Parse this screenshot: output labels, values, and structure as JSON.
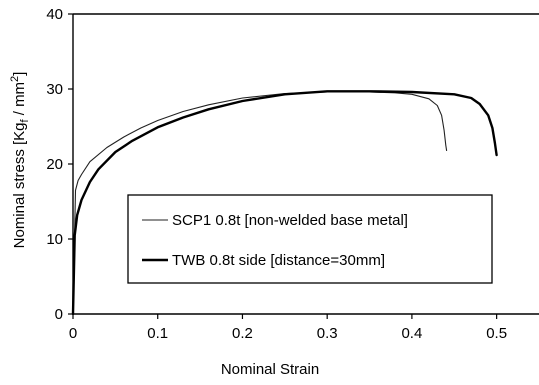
{
  "chart_data": {
    "type": "line",
    "title": "",
    "xlabel": "Nominal Strain",
    "ylabel": "Nominal stress [Kg",
    "ylabel_sub": "f",
    "ylabel_mid": " / mm",
    "ylabel_sup": "2",
    "ylabel_end": "]",
    "xlim": [
      0,
      0.55
    ],
    "ylim": [
      0,
      40
    ],
    "x_ticks": [
      0,
      0.1,
      0.2,
      0.3,
      0.4,
      0.5
    ],
    "x_tick_labels": [
      "0",
      "0.1",
      "0.2",
      "0.3",
      "0.4",
      "0.5"
    ],
    "y_ticks": [
      0,
      10,
      20,
      30,
      40
    ],
    "y_tick_labels": [
      "0",
      "10",
      "20",
      "30",
      "40"
    ],
    "grid": false,
    "legend_position": "center-right",
    "series": [
      {
        "name": "SCP1 0.8t [non-welded base metal]",
        "color": "#222222",
        "line_style": "thin",
        "x": [
          0,
          0.003,
          0.006,
          0.01,
          0.02,
          0.04,
          0.06,
          0.08,
          0.1,
          0.13,
          0.16,
          0.2,
          0.25,
          0.3,
          0.35,
          0.38,
          0.4,
          0.42,
          0.43,
          0.435,
          0.438,
          0.44,
          0.441
        ],
        "y": [
          0,
          16.5,
          17.8,
          18.6,
          20.3,
          22.2,
          23.6,
          24.8,
          25.8,
          27.0,
          27.9,
          28.8,
          29.4,
          29.6,
          29.6,
          29.5,
          29.3,
          28.7,
          27.8,
          26.5,
          24.5,
          22.5,
          21.8
        ]
      },
      {
        "name": "TWB 0.8t side [distance=30mm]",
        "color": "#000000",
        "line_style": "thick",
        "x": [
          0,
          0.002,
          0.005,
          0.01,
          0.02,
          0.03,
          0.05,
          0.07,
          0.1,
          0.13,
          0.16,
          0.2,
          0.25,
          0.3,
          0.35,
          0.4,
          0.45,
          0.47,
          0.48,
          0.49,
          0.495,
          0.498,
          0.5
        ],
        "y": [
          0,
          10.5,
          13.2,
          15.2,
          17.6,
          19.3,
          21.6,
          23.1,
          24.9,
          26.2,
          27.3,
          28.4,
          29.3,
          29.7,
          29.7,
          29.6,
          29.3,
          28.8,
          28.0,
          26.5,
          24.8,
          22.8,
          21.2
        ]
      }
    ]
  }
}
